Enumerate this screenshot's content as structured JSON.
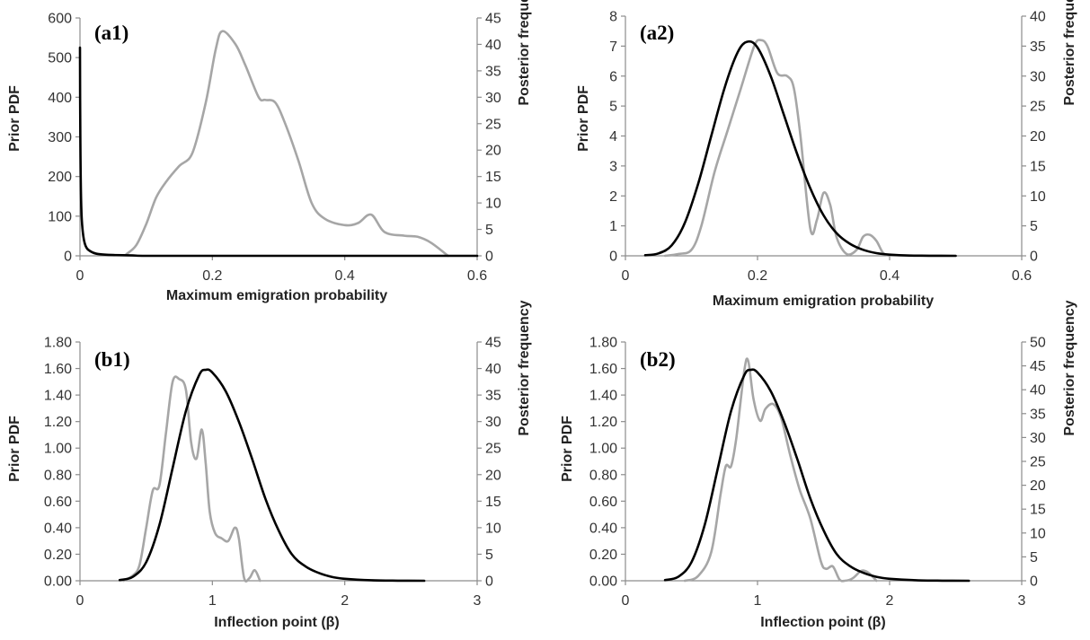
{
  "colors": {
    "prior": "#000000",
    "posterior": "#a6a6a6",
    "axis": "#8c8c8c"
  },
  "chart_data": [
    {
      "type": "line",
      "panel_label": "(a1)",
      "xlabel": "Maximum emigration probability",
      "ylabel": "Prior PDF",
      "y2label": "Posterior frequency",
      "xlim": [
        0,
        0.6
      ],
      "x_ticks": [
        0,
        0.2,
        0.4,
        0.6
      ],
      "x_tick_labels": [
        "0",
        "0.2",
        "0.4",
        "0.6"
      ],
      "ylim": [
        0,
        600
      ],
      "y_ticks": [
        0,
        100,
        200,
        300,
        400,
        500,
        600
      ],
      "y_tick_labels": [
        "0",
        "100",
        "200",
        "300",
        "400",
        "500",
        "600"
      ],
      "y2lim": [
        0,
        45
      ],
      "y2_ticks": [
        0,
        5,
        10,
        15,
        20,
        25,
        30,
        35,
        40,
        45
      ],
      "y2_tick_labels": [
        "0",
        "5",
        "10",
        "15",
        "20",
        "25",
        "30",
        "35",
        "40",
        "45"
      ],
      "series": [
        {
          "axis": "left",
          "color": "#000000",
          "x": [
            0,
            0.0005,
            0.002,
            0.005,
            0.01,
            0.02,
            0.03,
            0.05,
            0.08,
            0.1,
            0.2,
            0.4,
            0.6
          ],
          "y": [
            525,
            300,
            120,
            50,
            20,
            8,
            4,
            2,
            1,
            0,
            0,
            0,
            0
          ]
        },
        {
          "axis": "right",
          "color": "#a6a6a6",
          "x": [
            0.07,
            0.085,
            0.1,
            0.115,
            0.13,
            0.15,
            0.17,
            0.19,
            0.205,
            0.215,
            0.235,
            0.25,
            0.27,
            0.28,
            0.295,
            0.31,
            0.33,
            0.35,
            0.37,
            0.4,
            0.42,
            0.44,
            0.46,
            0.49,
            0.51,
            0.53,
            0.556
          ],
          "y": [
            0.3,
            2,
            6,
            11,
            14,
            17,
            19.5,
            29,
            39,
            42.5,
            40,
            36,
            30,
            29.5,
            29,
            25,
            18,
            10,
            7,
            5.8,
            6.2,
            7.8,
            4.5,
            3.8,
            3.6,
            2.5,
            0
          ]
        }
      ]
    },
    {
      "type": "line",
      "panel_label": "(a2)",
      "xlabel": "Maximum emigration probability",
      "ylabel": "Prior PDF",
      "y2label": "Posterior frequency",
      "xlim": [
        0,
        0.6
      ],
      "x_ticks": [
        0,
        0.2,
        0.4,
        0.6
      ],
      "x_tick_labels": [
        "0",
        "0.2",
        "0.4",
        "0.6"
      ],
      "ylim": [
        0,
        8
      ],
      "y_ticks": [
        0,
        1,
        2,
        3,
        4,
        5,
        6,
        7,
        8
      ],
      "y_tick_labels": [
        "0",
        "1",
        "2",
        "3",
        "4",
        "5",
        "6",
        "7",
        "8"
      ],
      "y2lim": [
        0,
        40
      ],
      "y2_ticks": [
        0,
        5,
        10,
        15,
        20,
        25,
        30,
        35,
        40
      ],
      "y2_tick_labels": [
        "0",
        "5",
        "10",
        "15",
        "20",
        "25",
        "30",
        "35",
        "40"
      ],
      "series": [
        {
          "axis": "left",
          "color": "#000000",
          "x": [
            0.03,
            0.05,
            0.07,
            0.09,
            0.11,
            0.13,
            0.15,
            0.17,
            0.185,
            0.2,
            0.22,
            0.24,
            0.26,
            0.28,
            0.3,
            0.32,
            0.34,
            0.36,
            0.38,
            0.4,
            0.43,
            0.46,
            0.5
          ],
          "y": [
            0.02,
            0.08,
            0.35,
            1.1,
            2.4,
            4,
            5.6,
            6.8,
            7.15,
            6.95,
            6,
            4.7,
            3.4,
            2.25,
            1.35,
            0.75,
            0.4,
            0.2,
            0.09,
            0.04,
            0.01,
            0.003,
            0
          ]
        },
        {
          "axis": "right",
          "color": "#a6a6a6",
          "x": [
            0.06,
            0.08,
            0.1,
            0.115,
            0.135,
            0.155,
            0.175,
            0.195,
            0.205,
            0.215,
            0.23,
            0.245,
            0.255,
            0.265,
            0.28,
            0.29,
            0.3,
            0.31,
            0.32,
            0.335,
            0.35,
            0.36,
            0.37,
            0.38,
            0.39,
            0.4
          ],
          "y": [
            0,
            0.3,
            1,
            5,
            14,
            21,
            28,
            35,
            36,
            35,
            30.5,
            30,
            28,
            20,
            4.5,
            6,
            10.5,
            8.5,
            3,
            0.3,
            1,
            3.2,
            3.5,
            2.5,
            0.5,
            0
          ]
        }
      ]
    },
    {
      "type": "line",
      "panel_label": "(b1)",
      "xlabel": "Inflection point (β)",
      "ylabel": "Prior PDF",
      "y2label": "Posterior frequency",
      "xlim": [
        0,
        3
      ],
      "x_ticks": [
        0,
        1,
        2,
        3
      ],
      "x_tick_labels": [
        "0",
        "1",
        "2",
        "3"
      ],
      "ylim": [
        0,
        1.8
      ],
      "y_ticks": [
        0,
        0.2,
        0.4,
        0.6,
        0.8,
        1.0,
        1.2,
        1.4,
        1.6,
        1.8
      ],
      "y_tick_labels": [
        "0.00",
        "0.20",
        "0.40",
        "0.60",
        "0.80",
        "1.00",
        "1.20",
        "1.40",
        "1.60",
        "1.80"
      ],
      "y2lim": [
        0,
        45
      ],
      "y2_ticks": [
        0,
        5,
        10,
        15,
        20,
        25,
        30,
        35,
        40,
        45
      ],
      "y2_tick_labels": [
        "0",
        "5",
        "10",
        "15",
        "20",
        "25",
        "30",
        "35",
        "40",
        "45"
      ],
      "series": [
        {
          "axis": "left",
          "color": "#000000",
          "x": [
            0.3,
            0.4,
            0.5,
            0.6,
            0.7,
            0.8,
            0.9,
            0.95,
            1.0,
            1.1,
            1.2,
            1.3,
            1.4,
            1.5,
            1.6,
            1.7,
            1.8,
            1.9,
            2.0,
            2.2,
            2.4,
            2.6
          ],
          "y": [
            0.005,
            0.03,
            0.14,
            0.42,
            0.85,
            1.28,
            1.55,
            1.59,
            1.57,
            1.43,
            1.2,
            0.92,
            0.62,
            0.38,
            0.2,
            0.11,
            0.06,
            0.03,
            0.015,
            0.004,
            0.001,
            0
          ]
        },
        {
          "axis": "right",
          "color": "#a6a6a6",
          "x": [
            0.33,
            0.4,
            0.45,
            0.5,
            0.55,
            0.6,
            0.65,
            0.7,
            0.75,
            0.8,
            0.84,
            0.88,
            0.92,
            0.95,
            0.98,
            1.02,
            1.07,
            1.12,
            1.17,
            1.2,
            1.24,
            1.28,
            1.32,
            1.36
          ],
          "y": [
            0,
            1,
            3,
            10,
            17,
            18,
            28,
            37.5,
            38,
            36,
            26,
            23,
            28.5,
            22,
            13,
            9,
            8,
            7.5,
            10,
            8,
            0.5,
            0.5,
            2,
            0
          ]
        }
      ]
    },
    {
      "type": "line",
      "panel_label": "(b2)",
      "xlabel": "Inflection point (β)",
      "ylabel": "Prior PDF",
      "y2label": "Posterior frequency",
      "xlim": [
        0,
        3
      ],
      "x_ticks": [
        0,
        1,
        2,
        3
      ],
      "x_tick_labels": [
        "0",
        "1",
        "2",
        "3"
      ],
      "ylim": [
        0,
        1.8
      ],
      "y_ticks": [
        0,
        0.2,
        0.4,
        0.6,
        0.8,
        1.0,
        1.2,
        1.4,
        1.6,
        1.8
      ],
      "y_tick_labels": [
        "0.00",
        "0.20",
        "0.40",
        "0.60",
        "0.80",
        "1.00",
        "1.20",
        "1.40",
        "1.60",
        "1.80"
      ],
      "y2lim": [
        0,
        50
      ],
      "y2_ticks": [
        0,
        5,
        10,
        15,
        20,
        25,
        30,
        35,
        40,
        45,
        50
      ],
      "y2_tick_labels": [
        "0",
        "5",
        "10",
        "15",
        "20",
        "25",
        "30",
        "35",
        "40",
        "45",
        "50"
      ],
      "series": [
        {
          "axis": "left",
          "color": "#000000",
          "x": [
            0.3,
            0.4,
            0.5,
            0.6,
            0.7,
            0.8,
            0.9,
            0.95,
            1.0,
            1.1,
            1.2,
            1.3,
            1.4,
            1.5,
            1.6,
            1.7,
            1.8,
            1.9,
            2.0,
            2.2,
            2.4,
            2.6
          ],
          "y": [
            0.005,
            0.03,
            0.14,
            0.42,
            0.85,
            1.28,
            1.55,
            1.59,
            1.57,
            1.43,
            1.2,
            0.92,
            0.62,
            0.38,
            0.2,
            0.11,
            0.06,
            0.03,
            0.015,
            0.004,
            0.001,
            0
          ]
        },
        {
          "axis": "right",
          "color": "#a6a6a6",
          "x": [
            0.45,
            0.55,
            0.65,
            0.72,
            0.76,
            0.8,
            0.84,
            0.9,
            0.93,
            0.97,
            1.02,
            1.06,
            1.12,
            1.18,
            1.25,
            1.32,
            1.4,
            1.48,
            1.52,
            1.57,
            1.62,
            1.66,
            1.72,
            1.78,
            1.82,
            1.86,
            1.9
          ],
          "y": [
            0,
            1,
            6,
            18,
            24,
            24,
            30,
            44,
            46,
            38,
            33.5,
            36,
            37,
            34,
            26,
            19,
            13,
            4,
            2.5,
            3,
            0.3,
            0,
            0.5,
            2,
            2,
            1.2,
            0
          ]
        }
      ]
    }
  ]
}
